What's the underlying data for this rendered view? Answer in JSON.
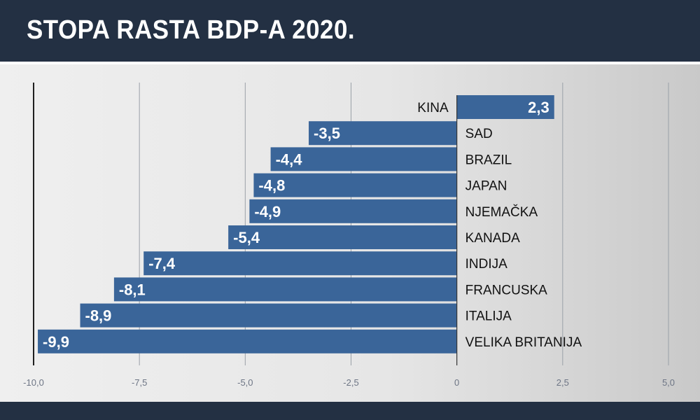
{
  "title": "STOPA RASTA BDP-A 2020.",
  "colors": {
    "background": "#233043",
    "bar": "#3a6599",
    "grid": "#9aa0a8",
    "zero_axis": "#333333"
  },
  "chart_data": {
    "type": "bar",
    "orientation": "horizontal",
    "categories": [
      "KINA",
      "SAD",
      "BRAZIL",
      "JAPAN",
      "NJEMAČKA",
      "KANADA",
      "INDIJA",
      "FRANCUSKA",
      "ITALIJA",
      "VELIKA BRITANIJA"
    ],
    "values": [
      2.3,
      -3.5,
      -4.4,
      -4.8,
      -4.9,
      -5.4,
      -7.4,
      -8.1,
      -8.9,
      -9.9
    ],
    "value_labels": [
      "2,3",
      "-3,5",
      "-4,4",
      "-4,8",
      "-4,9",
      "-5,4",
      "-7,4",
      "-8,1",
      "-8,9",
      "-9,9"
    ],
    "xlim": [
      -10,
      5
    ],
    "xticks": [
      -10,
      -7.5,
      -5,
      -2.5,
      0,
      2.5,
      5
    ],
    "xtick_labels": [
      "-10,0",
      "-7,5",
      "-5,0",
      "-2,5",
      "0",
      "2,5",
      "5,0"
    ],
    "grid": true,
    "title": "STOPA RASTA BDP-A 2020.",
    "xlabel": "",
    "ylabel": ""
  }
}
